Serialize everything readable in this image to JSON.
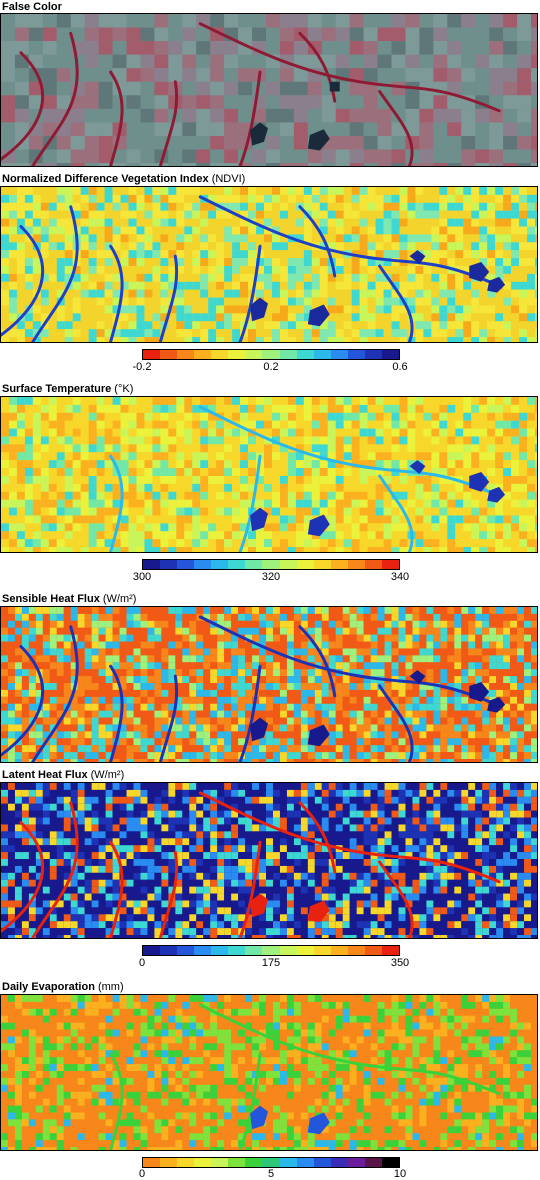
{
  "panels": {
    "false_color": {
      "title": "False Color",
      "unit": ""
    },
    "ndvi": {
      "title": "Normalized Difference Vegetation Index",
      "unit": "(NDVI)",
      "colorbar": {
        "ticks": [
          "-0.2",
          "0.2",
          "0.6"
        ],
        "colors": [
          "#e8220e",
          "#f15a16",
          "#f7871b",
          "#fbb11f",
          "#f7d82a",
          "#ebf23c",
          "#c8f55a",
          "#9ef17d",
          "#6fe8a8",
          "#3ed8d2",
          "#2bb8ea",
          "#2a8cf0",
          "#2456dc",
          "#1d32b4",
          "#17198c"
        ]
      }
    },
    "surface_temperature": {
      "title": "Surface Temperature",
      "unit": "(°K)",
      "colorbar": {
        "ticks": [
          "300",
          "320",
          "340"
        ],
        "colors": [
          "#17198c",
          "#1d32b4",
          "#2456dc",
          "#2a8cf0",
          "#2bb8ea",
          "#3ed8d2",
          "#6fe8a8",
          "#9ef17d",
          "#c8f55a",
          "#ebf23c",
          "#f7d82a",
          "#fbb11f",
          "#f7871b",
          "#f15a16",
          "#e8220e"
        ]
      }
    },
    "sensible_heat_flux": {
      "title": "Sensible Heat Flux",
      "unit": "(W/m²)"
    },
    "latent_heat_flux": {
      "title": "Latent Heat Flux",
      "unit": "(W/m²)",
      "colorbar": {
        "ticks": [
          "0",
          "175",
          "350"
        ],
        "colors": [
          "#17198c",
          "#1d32b4",
          "#2456dc",
          "#2a8cf0",
          "#2bb8ea",
          "#3ed8d2",
          "#6fe8a8",
          "#9ef17d",
          "#c8f55a",
          "#ebf23c",
          "#f7d82a",
          "#fbb11f",
          "#f7871b",
          "#f15a16",
          "#e8220e"
        ]
      }
    },
    "daily_evaporation": {
      "title": "Daily Evaporation",
      "unit": "(mm)",
      "colorbar": {
        "ticks": [
          "0",
          "5",
          "10"
        ],
        "colors": [
          "#f7871b",
          "#fbb11f",
          "#f7d82a",
          "#ebf23c",
          "#c8f55a",
          "#7ee23c",
          "#3ad23a",
          "#2cc878",
          "#2bb8ea",
          "#2a8cf0",
          "#2456dc",
          "#3a2cb8",
          "#6a1e9c",
          "#5a1448",
          "#000000"
        ]
      }
    }
  }
}
